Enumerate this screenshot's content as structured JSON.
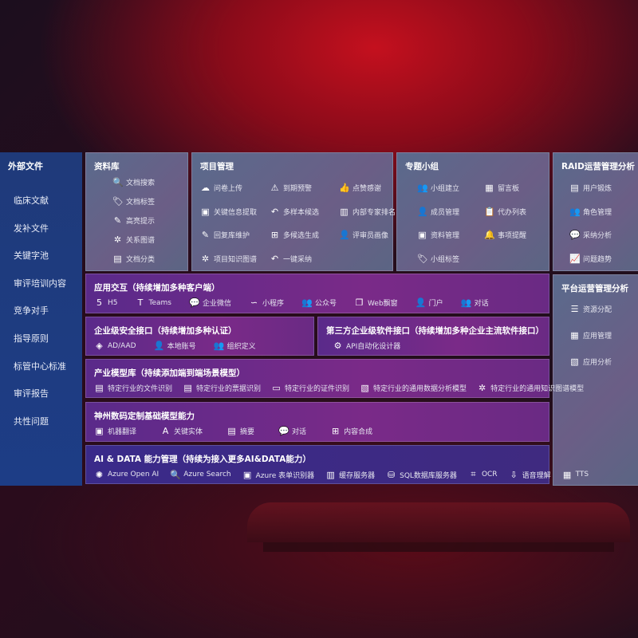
{
  "sidebar": {
    "title": "外部文件",
    "items": [
      "临床文献",
      "发补文件",
      "关键字池",
      "审评培训内容",
      "竞争对手",
      "指导原则",
      "标管中心标准",
      "审评报告",
      "共性问题"
    ]
  },
  "library": {
    "title": "资料库",
    "items": [
      {
        "icon": "document-search-icon",
        "g": "🔍",
        "label": "文档搜索"
      },
      {
        "icon": "tag-icon",
        "g": "🏷",
        "label": "文档标签"
      },
      {
        "icon": "pen-icon",
        "g": "✎",
        "label": "高亮提示"
      },
      {
        "icon": "graph-icon",
        "g": "✲",
        "label": "关系图谱"
      },
      {
        "icon": "document-classify-icon",
        "g": "▤",
        "label": "文档分类"
      }
    ]
  },
  "project": {
    "title": "项目管理",
    "items": [
      {
        "icon": "cloud-upload-icon",
        "g": "☁",
        "label": "问卷上传"
      },
      {
        "icon": "alarm-icon",
        "g": "⚠",
        "label": "到期预警"
      },
      {
        "icon": "thumbs-up-icon",
        "g": "👍",
        "label": "点赞感谢"
      },
      {
        "icon": "extract-icon",
        "g": "▣",
        "label": "关键信息提取"
      },
      {
        "icon": "reply-icon",
        "g": "↶",
        "label": "多样本候选"
      },
      {
        "icon": "ranking-icon",
        "g": "▥",
        "label": "内部专家排名"
      },
      {
        "icon": "edit-icon",
        "g": "✎",
        "label": "回复库维护"
      },
      {
        "icon": "puzzle-icon",
        "g": "⊞",
        "label": "多候选生成"
      },
      {
        "icon": "user-profile-icon",
        "g": "👤",
        "label": "评审员画像"
      },
      {
        "icon": "knowledge-graph-icon",
        "g": "✲",
        "label": "项目知识图谱"
      },
      {
        "icon": "reply-icon",
        "g": "↶",
        "label": "一键采纳"
      }
    ]
  },
  "group": {
    "title": "专题小组",
    "items": [
      {
        "icon": "group-icon",
        "g": "👥",
        "label": "小组建立"
      },
      {
        "icon": "bbs-icon",
        "g": "▦",
        "label": "留言板"
      },
      {
        "icon": "add-member-icon",
        "g": "👤",
        "label": "成员管理"
      },
      {
        "icon": "clipboard-icon",
        "g": "📋",
        "label": "代办列表"
      },
      {
        "icon": "folder-icon",
        "g": "▣",
        "label": "资料管理"
      },
      {
        "icon": "bell-icon",
        "g": "🔔",
        "label": "事项提醒"
      },
      {
        "icon": "tag-icon",
        "g": "🏷",
        "label": "小组标签"
      }
    ]
  },
  "raid": {
    "title": "RAID运营管理分析",
    "items": [
      {
        "icon": "id-card-icon",
        "g": "▤",
        "label": "用户锻炼"
      },
      {
        "icon": "users-icon",
        "g": "👥",
        "label": "角色管理"
      },
      {
        "icon": "qa-icon",
        "g": "💬",
        "label": "采纳分析"
      },
      {
        "icon": "trend-icon",
        "g": "📈",
        "label": "问题趋势"
      }
    ]
  },
  "platform": {
    "title": "平台运营管理分析",
    "items": [
      {
        "icon": "list-icon",
        "g": "☰",
        "label": "资源分配"
      },
      {
        "icon": "apps-icon",
        "g": "▦",
        "label": "应用管理"
      },
      {
        "icon": "analysis-icon",
        "g": "▧",
        "label": "应用分析"
      }
    ]
  },
  "interaction": {
    "title": "应用交互（持续增加多种客户端）",
    "items": [
      {
        "icon": "html5-icon",
        "g": "5",
        "label": "H5"
      },
      {
        "icon": "teams-icon",
        "g": "T",
        "label": "Teams"
      },
      {
        "icon": "wechat-work-icon",
        "g": "💬",
        "label": "企业微信"
      },
      {
        "icon": "mini-program-icon",
        "g": "∽",
        "label": "小程序"
      },
      {
        "icon": "official-account-icon",
        "g": "👥",
        "label": "公众号"
      },
      {
        "icon": "web-window-icon",
        "g": "❐",
        "label": "Web飘窗"
      },
      {
        "icon": "portal-icon",
        "g": "👤",
        "label": "门户"
      },
      {
        "icon": "chat-icon",
        "g": "👥",
        "label": "对话"
      }
    ]
  },
  "security": {
    "title": "企业级安全接口（持续增加多种认证）",
    "items": [
      {
        "icon": "ad-icon",
        "g": "◈",
        "label": "AD/AAD"
      },
      {
        "icon": "local-account-icon",
        "g": "👤",
        "label": "本地账号"
      },
      {
        "icon": "organization-icon",
        "g": "👥",
        "label": "组织定义"
      }
    ]
  },
  "thirdparty": {
    "title": "第三方企业级软件接口（持续增加多种企业主流软件接口）",
    "items": [
      {
        "icon": "api-gear-icon",
        "g": "⚙",
        "label": "API自动化设计器"
      }
    ]
  },
  "industry": {
    "title": "产业模型库（持续添加端到端场景模型）",
    "items": [
      {
        "icon": "file-icon",
        "g": "▤",
        "label": "特定行业的文件识别"
      },
      {
        "icon": "receipt-icon",
        "g": "▤",
        "label": "特定行业的票据识别"
      },
      {
        "icon": "certificate-icon",
        "g": "▭",
        "label": "特定行业的证件识别"
      },
      {
        "icon": "data-analysis-icon",
        "g": "▧",
        "label": "特定行业的通用数据分析模型"
      },
      {
        "icon": "knowledge-graph-icon",
        "g": "✲",
        "label": "特定行业的通用知识图谱模型"
      }
    ]
  },
  "base": {
    "title": "神州数码定制基础模型能力",
    "items": [
      {
        "icon": "translate-icon",
        "g": "▣",
        "label": "机器翻译"
      },
      {
        "icon": "entity-icon",
        "g": "A",
        "label": "关键实体"
      },
      {
        "icon": "summary-icon",
        "g": "▤",
        "label": "摘要"
      },
      {
        "icon": "chat-bubble-icon",
        "g": "💬",
        "label": "对话"
      },
      {
        "icon": "content-compose-icon",
        "g": "⊞",
        "label": "内容合成"
      }
    ]
  },
  "aidata": {
    "title": "AI & DATA 能力管理（持续为接入更多AI&DATA能力）",
    "items": [
      {
        "icon": "openai-icon",
        "g": "✺",
        "label": "Azure Open AI"
      },
      {
        "icon": "search-doc-icon",
        "g": "🔍",
        "label": "Azure Search"
      },
      {
        "icon": "form-recognizer-icon",
        "g": "▣",
        "label": "Azure 表单识别器"
      },
      {
        "icon": "cache-server-icon",
        "g": "▥",
        "label": "缓存服务器"
      },
      {
        "icon": "sql-icon",
        "g": "⛁",
        "label": "SQL数据库服务器"
      },
      {
        "icon": "ocr-icon",
        "g": "⌗",
        "label": "OCR"
      },
      {
        "icon": "speech-icon",
        "g": "⇩",
        "label": "语音理解"
      },
      {
        "icon": "tts-icon",
        "g": "▦",
        "label": "TTS"
      }
    ]
  }
}
